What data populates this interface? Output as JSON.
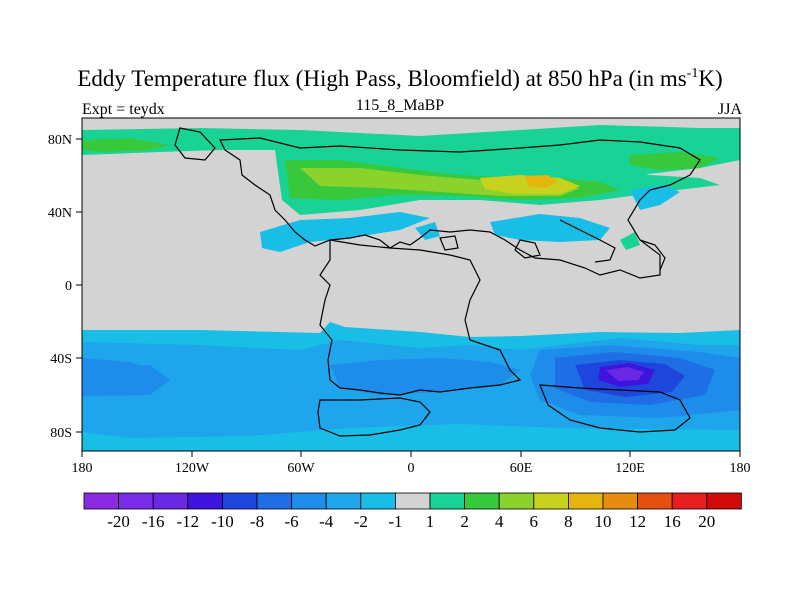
{
  "title_text": "Eddy Temperature flux (High Pass, Bloomfield) at 850 hPa (in ms",
  "title_sup": "-1",
  "title_end": "K)",
  "left_label": "Expt = teydx",
  "center_label": "115_8_MaBP",
  "right_label": "JJA",
  "map": {
    "lon_ticks": [
      "180",
      "120W",
      "60W",
      "0",
      "60E",
      "120E",
      "180"
    ],
    "lat_ticks": [
      "80N",
      "40N",
      "0",
      "40S",
      "80S"
    ],
    "colors": {
      "land": "#d3d3d3",
      "outline": "#000000"
    }
  },
  "colorbar": {
    "labels": [
      "-20",
      "-16",
      "-12",
      "-10",
      "-8",
      "-6",
      "-4",
      "-2",
      "-1",
      "1",
      "2",
      "4",
      "6",
      "8",
      "10",
      "12",
      "16",
      "20"
    ],
    "colors": [
      "#8a2be2",
      "#7a2de8",
      "#6a28e4",
      "#3c14dc",
      "#1e46dc",
      "#1e6ee6",
      "#1e8cea",
      "#1ea5ec",
      "#19bee6",
      "#d3d3d3",
      "#19d296",
      "#37c83c",
      "#8cd22d",
      "#c8d21e",
      "#e6b40f",
      "#e68c0f",
      "#e6500f",
      "#e61e1e",
      "#d20a0a"
    ]
  }
}
